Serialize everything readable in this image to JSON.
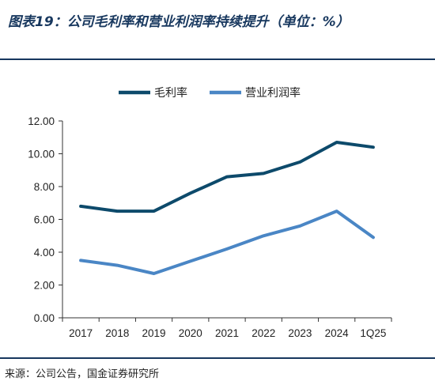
{
  "title": "图表19：公司毛利率和营业利润率持续提升（单位：%）",
  "source": "来源：公司公告，国金证券研究所",
  "chart_data": {
    "type": "line",
    "categories": [
      "2017",
      "2018",
      "2019",
      "2020",
      "2021",
      "2022",
      "2023",
      "2024",
      "1Q25"
    ],
    "y_ticks": [
      "0.00",
      "2.00",
      "4.00",
      "6.00",
      "8.00",
      "10.00",
      "12.00"
    ],
    "ylim": [
      0,
      12
    ],
    "legend_position": "top-center",
    "grid": false,
    "series": [
      {
        "name": "毛利率",
        "color": "#0d4a6b",
        "values": [
          6.8,
          6.5,
          6.5,
          7.6,
          8.6,
          8.8,
          9.5,
          10.7,
          10.4
        ]
      },
      {
        "name": "营业利润率",
        "color": "#4a86c5",
        "values": [
          3.5,
          3.2,
          2.7,
          3.45,
          4.2,
          5.0,
          5.6,
          6.5,
          4.9
        ]
      }
    ]
  }
}
